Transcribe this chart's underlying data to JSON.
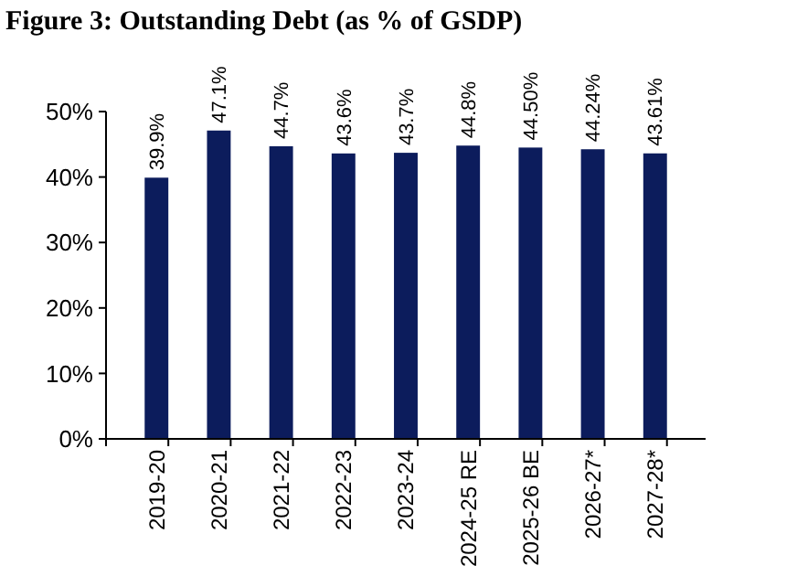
{
  "chart_data": {
    "type": "bar",
    "title": "Figure 3: Outstanding Debt (as % of GSDP)",
    "categories": [
      "2019-20",
      "2020-21",
      "2021-22",
      "2022-23",
      "2023-24",
      "2024-25 RE",
      "2025-26 BE",
      "2026-27*",
      "2027-28*"
    ],
    "values": [
      39.9,
      47.1,
      44.7,
      43.6,
      43.7,
      44.8,
      44.5,
      44.24,
      43.61
    ],
    "value_labels": [
      "39.9%",
      "47.1%",
      "44.7%",
      "43.6%",
      "43.7%",
      "44.8%",
      "44.50%",
      "44.24%",
      "43.61%"
    ],
    "color": "#0c1c5c",
    "ylim": [
      0,
      50
    ],
    "yticks": [
      {
        "value": 0,
        "label": "0%"
      },
      {
        "value": 10,
        "label": "10%"
      },
      {
        "value": 20,
        "label": "20%"
      },
      {
        "value": 30,
        "label": "30%"
      },
      {
        "value": 40,
        "label": "40%"
      },
      {
        "value": 50,
        "label": "50%"
      }
    ],
    "grid": false
  }
}
